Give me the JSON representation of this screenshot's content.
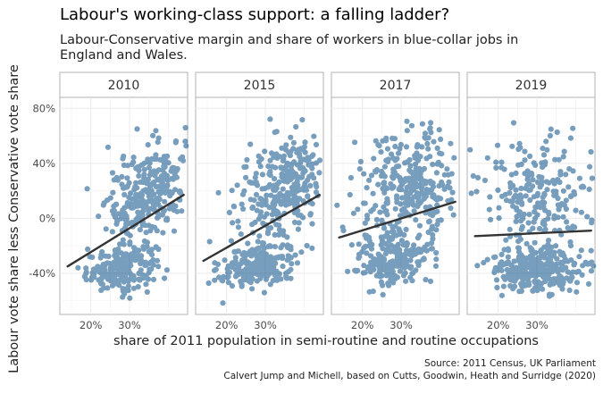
{
  "title": "Labour's working-class support: a falling ladder?",
  "subtitle": "Labour-Conservative margin and share of workers in blue-collar jobs in England and Wales.",
  "caption_line1": "Source: 2011 Census, UK Parliament",
  "caption_line2": "Calvert Jump and Michell, based on Cutts, Goodwin, Heath and Surridge (2020)",
  "colors": {
    "point": "#0b4f8a",
    "trend": "#333333",
    "panel_bg": "#ffffff",
    "grid": "#ebebeb",
    "strip_bg": "#ffffff",
    "strip_border": "#b3b3b3"
  },
  "chart_data": {
    "type": "scatter",
    "facet_by": "year",
    "xlabel": "share of 2011 population in semi-routine and routine occupations",
    "ylabel": "Labour vote share less Conservative vote share",
    "xlim": [
      0.12,
      0.45
    ],
    "ylim": [
      -0.7,
      0.88
    ],
    "x_ticks": [
      0.2,
      0.3
    ],
    "x_tick_labels": [
      "20%",
      "30%"
    ],
    "y_ticks": [
      -0.4,
      0.0,
      0.4,
      0.8
    ],
    "y_tick_labels": [
      "-40%",
      "0%",
      "40%",
      "80%"
    ],
    "grid": true,
    "panels": [
      {
        "label": "2010",
        "trend": {
          "x": [
            0.14,
            0.44
          ],
          "y": [
            -0.35,
            0.17
          ]
        },
        "points_estimated": 550
      },
      {
        "label": "2015",
        "trend": {
          "x": [
            0.14,
            0.44
          ],
          "y": [
            -0.31,
            0.17
          ]
        },
        "points_estimated": 550
      },
      {
        "label": "2017",
        "trend": {
          "x": [
            0.14,
            0.44
          ],
          "y": [
            -0.14,
            0.12
          ]
        },
        "points_estimated": 550
      },
      {
        "label": "2019",
        "trend": {
          "x": [
            0.14,
            0.44
          ],
          "y": [
            -0.13,
            -0.09
          ]
        },
        "points_estimated": 550
      }
    ]
  }
}
